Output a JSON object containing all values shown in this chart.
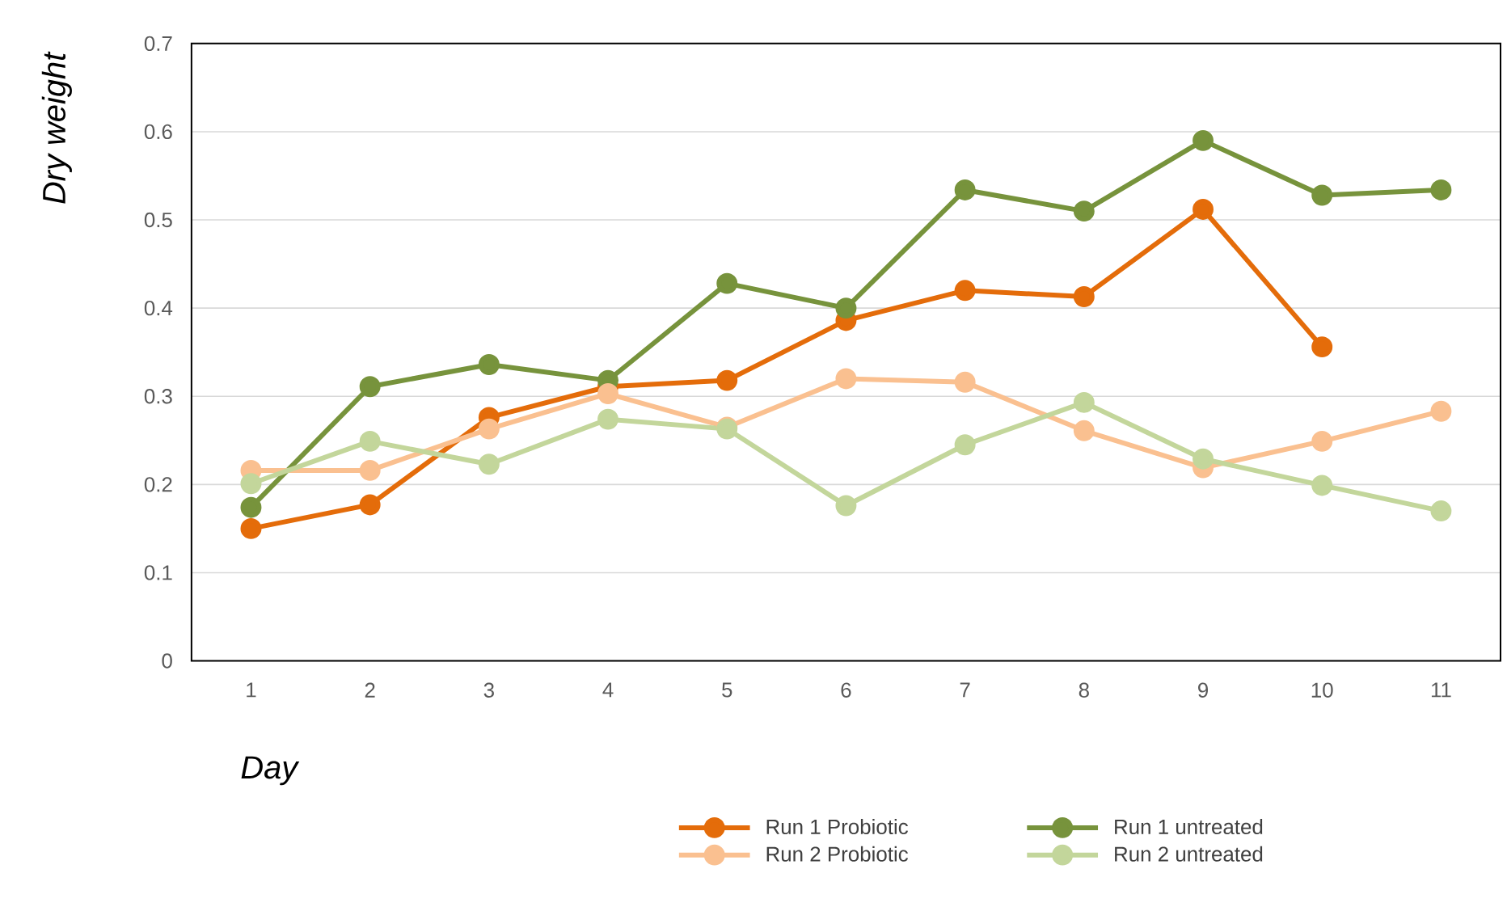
{
  "chart_data": {
    "type": "line",
    "xlabel": "Day",
    "ylabel": "Dry weight",
    "categories": [
      "1",
      "2",
      "3",
      "4",
      "5",
      "6",
      "7",
      "8",
      "9",
      "10",
      "11"
    ],
    "series": [
      {
        "name": "Run 1 Probiotic",
        "color": "#e46c0a",
        "values": [
          0.15,
          0.177,
          0.276,
          0.311,
          0.318,
          0.386,
          0.42,
          0.413,
          0.512,
          0.356,
          null
        ]
      },
      {
        "name": "Run 1 untreated",
        "color": "#77933c",
        "values": [
          0.174,
          0.311,
          0.336,
          0.318,
          0.428,
          0.4,
          0.534,
          0.51,
          0.59,
          0.528,
          0.534
        ]
      },
      {
        "name": "Run 2  Probiotic",
        "color": "#fac090",
        "values": [
          0.216,
          0.216,
          0.263,
          0.303,
          0.265,
          0.32,
          0.316,
          0.261,
          0.219,
          0.249,
          0.283
        ]
      },
      {
        "name": "Run 2 untreated",
        "color": "#c3d69b",
        "values": [
          0.201,
          0.249,
          0.223,
          0.274,
          0.263,
          0.176,
          0.245,
          0.293,
          0.229,
          0.199,
          0.17
        ]
      }
    ],
    "ylim": [
      0,
      0.7
    ],
    "yticks": [
      0,
      0.1,
      0.2,
      0.3,
      0.4,
      0.5,
      0.6,
      0.7
    ],
    "grid": "y",
    "legend": "bottom",
    "marker": "circle",
    "line_style": "solid"
  }
}
